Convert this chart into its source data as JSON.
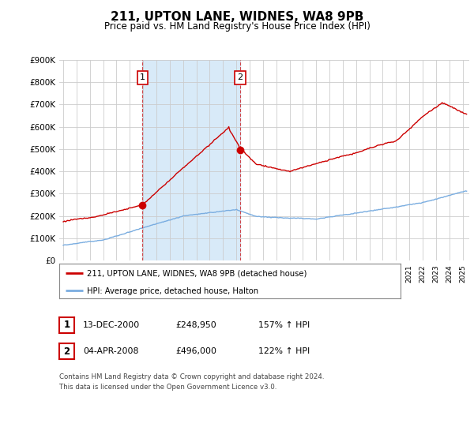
{
  "title": "211, UPTON LANE, WIDNES, WA8 9PB",
  "subtitle": "Price paid vs. HM Land Registry's House Price Index (HPI)",
  "ylim": [
    0,
    900000
  ],
  "yticks": [
    0,
    100000,
    200000,
    300000,
    400000,
    500000,
    600000,
    700000,
    800000,
    900000
  ],
  "ytick_labels": [
    "£0",
    "£100K",
    "£200K",
    "£300K",
    "£400K",
    "£500K",
    "£600K",
    "£700K",
    "£800K",
    "£900K"
  ],
  "xlim_start": 1994.7,
  "xlim_end": 2025.5,
  "sale1_x": 2000.96,
  "sale1_y": 248950,
  "sale2_x": 2008.27,
  "sale2_y": 496000,
  "red_color": "#cc0000",
  "blue_color": "#7aade0",
  "vline_color": "#cc0000",
  "shaded_color": "#d8eaf8",
  "legend_label_red": "211, UPTON LANE, WIDNES, WA8 9PB (detached house)",
  "legend_label_blue": "HPI: Average price, detached house, Halton",
  "table_row1": [
    "1",
    "13-DEC-2000",
    "£248,950",
    "157% ↑ HPI"
  ],
  "table_row2": [
    "2",
    "04-APR-2008",
    "£496,000",
    "122% ↑ HPI"
  ],
  "footnote": "Contains HM Land Registry data © Crown copyright and database right 2024.\nThis data is licensed under the Open Government Licence v3.0.",
  "bg_color": "#ffffff",
  "grid_color": "#cccccc"
}
